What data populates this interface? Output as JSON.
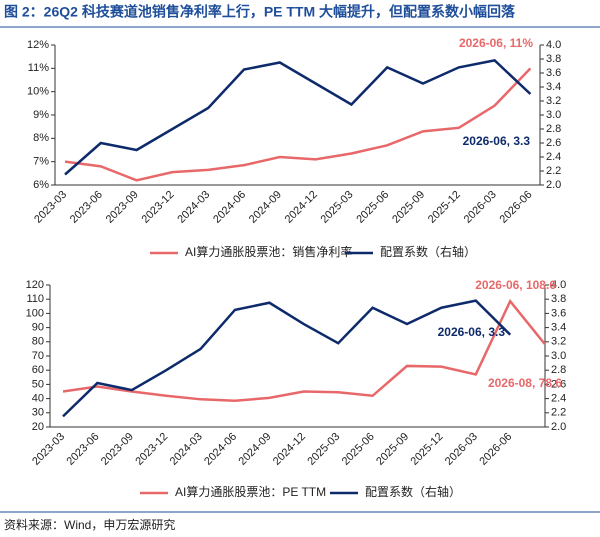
{
  "title": "图 2：26Q2 科技赛道池销售净利率上行，PE TTM 大幅提升，但配置系数小幅回落",
  "source": "资料来源：Wind，申万宏源研究",
  "chart_data": [
    {
      "type": "line",
      "categories": [
        "2023-03",
        "2023-06",
        "2023-09",
        "2023-12",
        "2024-03",
        "2024-06",
        "2024-09",
        "2024-12",
        "2025-03",
        "2025-06",
        "2025-09",
        "2025-12",
        "2026-03",
        "2026-06"
      ],
      "series": [
        {
          "name": "AI算力通胀股票池：销售净利率",
          "color": "#e8686a",
          "values": [
            7.0,
            6.8,
            6.2,
            6.55,
            6.65,
            6.85,
            7.2,
            7.1,
            7.35,
            7.7,
            8.3,
            8.45,
            9.4,
            11.0
          ]
        },
        {
          "name": "配置系数（右轴）",
          "color": "#0d2a6b",
          "axis": "y2",
          "values": [
            2.15,
            2.6,
            2.5,
            2.8,
            3.1,
            3.65,
            3.75,
            3.45,
            3.15,
            3.68,
            3.45,
            3.68,
            3.78,
            3.3
          ]
        }
      ],
      "ylim": [
        6,
        12
      ],
      "yticks": [
        {
          "value": 6,
          "label": "6%"
        },
        {
          "value": 7,
          "label": "7%"
        },
        {
          "value": 8,
          "label": "8%"
        },
        {
          "value": 9,
          "label": "9%"
        },
        {
          "value": 10,
          "label": "10%"
        },
        {
          "value": 11,
          "label": "11%"
        },
        {
          "value": 12,
          "label": "12%"
        }
      ],
      "y2lim": [
        2,
        4
      ],
      "y2ticks": [
        {
          "value": 2,
          "label": "2.0"
        },
        2.2,
        2.4,
        2.6,
        2.8,
        {
          "value": 3,
          "label": "3.0"
        },
        3.2,
        3.4,
        3.6,
        3.8,
        {
          "value": 4,
          "label": "4.0"
        }
      ],
      "annotations": [
        {
          "text": "2026-06, 11%",
          "color": "#e8686a"
        },
        {
          "text": "2026-06, 3.3",
          "color": "#0d2a6b"
        }
      ]
    },
    {
      "type": "line",
      "categories": [
        "2023-03",
        "2023-06",
        "2023-09",
        "2023-12",
        "2024-03",
        "2024-06",
        "2024-09",
        "2024-12",
        "2025-03",
        "2025-06",
        "2025-09",
        "2025-12",
        "2026-03",
        "2026-06",
        null
      ],
      "series": [
        {
          "name": "AI算力通胀股票池：PE TTM",
          "color": "#e8686a",
          "values": [
            45,
            48.5,
            45,
            42,
            39.5,
            38.5,
            40.5,
            45,
            44.5,
            42,
            63,
            62.5,
            57,
            108.6,
            78.6
          ]
        },
        {
          "name": "配置系数（右轴）",
          "color": "#0d2a6b",
          "axis": "y2",
          "values": [
            2.15,
            2.62,
            2.52,
            2.8,
            3.1,
            3.65,
            3.75,
            3.45,
            3.18,
            3.68,
            3.45,
            3.68,
            3.78,
            3.3,
            null
          ]
        }
      ],
      "ylim": [
        20,
        120
      ],
      "yticks": [
        20,
        30,
        40,
        50,
        60,
        70,
        80,
        90,
        100,
        110,
        120
      ],
      "y2lim": [
        2,
        4
      ],
      "y2ticks": [
        {
          "value": 2,
          "label": "2.0"
        },
        2.2,
        2.4,
        2.6,
        2.8,
        {
          "value": 3,
          "label": "3.0"
        },
        3.2,
        3.4,
        3.6,
        3.8,
        {
          "value": 4,
          "label": "4.0"
        }
      ],
      "annotations": [
        {
          "text": "2026-06, 108.6",
          "color": "#e8686a"
        },
        {
          "text": "2026-06, 3.3",
          "color": "#0d2a6b"
        },
        {
          "text": "2026-08, 78.6",
          "color": "#e8686a"
        }
      ]
    }
  ]
}
